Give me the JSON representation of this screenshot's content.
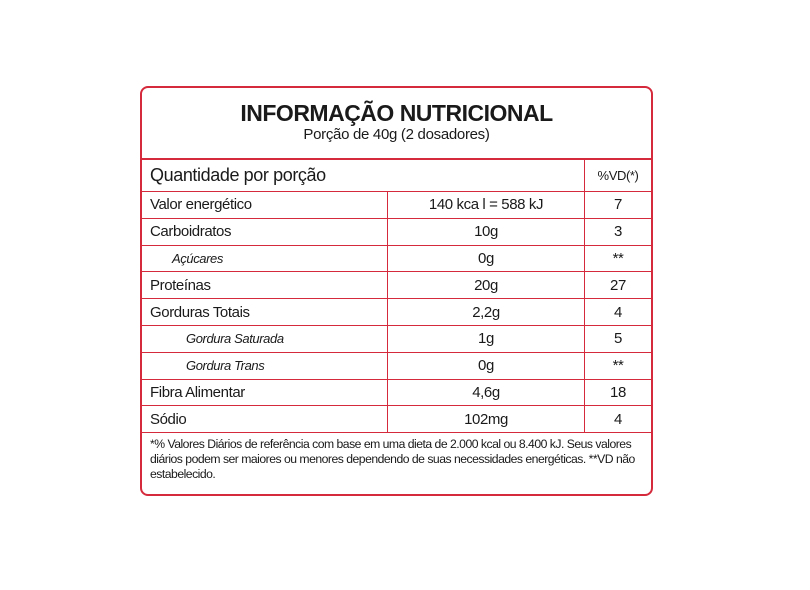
{
  "title": "INFORMAÇÃO NUTRICIONAL",
  "serving": "Porção de 40g (2 dosadores)",
  "header": {
    "quantity": "Quantidade por porção",
    "dv": "%VD(*)"
  },
  "rows": [
    {
      "name": "Valor energético",
      "amount": "140 kca l = 588 kJ",
      "dv": "7"
    },
    {
      "name": "Carboidratos",
      "amount": "10g",
      "dv": "3"
    },
    {
      "name": "Açúcares",
      "amount": "0g",
      "dv": "**"
    },
    {
      "name": "Proteínas",
      "amount": "20g",
      "dv": "27"
    },
    {
      "name": "Gorduras Totais",
      "amount": "2,2g",
      "dv": "4"
    },
    {
      "name": "Gordura Saturada",
      "amount": "1g",
      "dv": "5"
    },
    {
      "name": "Gordura Trans",
      "amount": "0g",
      "dv": "**"
    },
    {
      "name": "Fibra Alimentar",
      "amount": "4,6g",
      "dv": "18"
    },
    {
      "name": "Sódio",
      "amount": "102mg",
      "dv": "4"
    }
  ],
  "footnote": "*% Valores Diários de referência com base em uma dieta de 2.000 kcal ou 8.400 kJ.  Seus valores diários podem ser maiores ou menores dependendo de suas  necessidades energéticas.  **VD não estabelecido.",
  "colors": {
    "border": "#d42a3c"
  }
}
